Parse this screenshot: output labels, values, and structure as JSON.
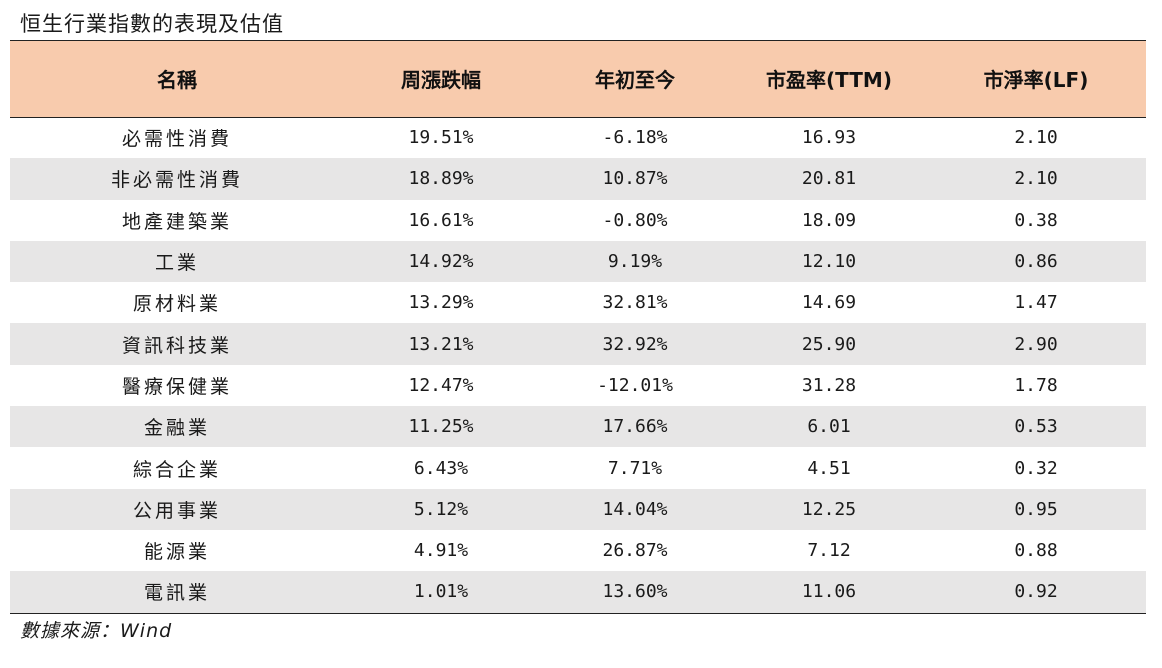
{
  "title": "恒生行業指數的表現及估值",
  "table": {
    "headers": [
      "名稱",
      "周漲跌幅",
      "年初至今",
      "市盈率(TTM)",
      "市淨率(LF)"
    ],
    "rows": [
      [
        "必需性消費",
        "19.51%",
        "-6.18%",
        "16.93",
        "2.10"
      ],
      [
        "非必需性消費",
        "18.89%",
        "10.87%",
        "20.81",
        "2.10"
      ],
      [
        "地產建築業",
        "16.61%",
        "-0.80%",
        "18.09",
        "0.38"
      ],
      [
        "工業",
        "14.92%",
        "9.19%",
        "12.10",
        "0.86"
      ],
      [
        "原材料業",
        "13.29%",
        "32.81%",
        "14.69",
        "1.47"
      ],
      [
        "資訊科技業",
        "13.21%",
        "32.92%",
        "25.90",
        "2.90"
      ],
      [
        "醫療保健業",
        "12.47%",
        "-12.01%",
        "31.28",
        "1.78"
      ],
      [
        "金融業",
        "11.25%",
        "17.66%",
        "6.01",
        "0.53"
      ],
      [
        "綜合企業",
        "6.43%",
        "7.71%",
        "4.51",
        "0.32"
      ],
      [
        "公用事業",
        "5.12%",
        "14.04%",
        "12.25",
        "0.95"
      ],
      [
        "能源業",
        "4.91%",
        "26.87%",
        "7.12",
        "0.88"
      ],
      [
        "電訊業",
        "1.01%",
        "13.60%",
        "11.06",
        "0.92"
      ]
    ]
  },
  "source": "數據來源：Wind",
  "colors": {
    "header_bg": "#f8cbad",
    "stripe_bg": "#e7e6e6"
  }
}
